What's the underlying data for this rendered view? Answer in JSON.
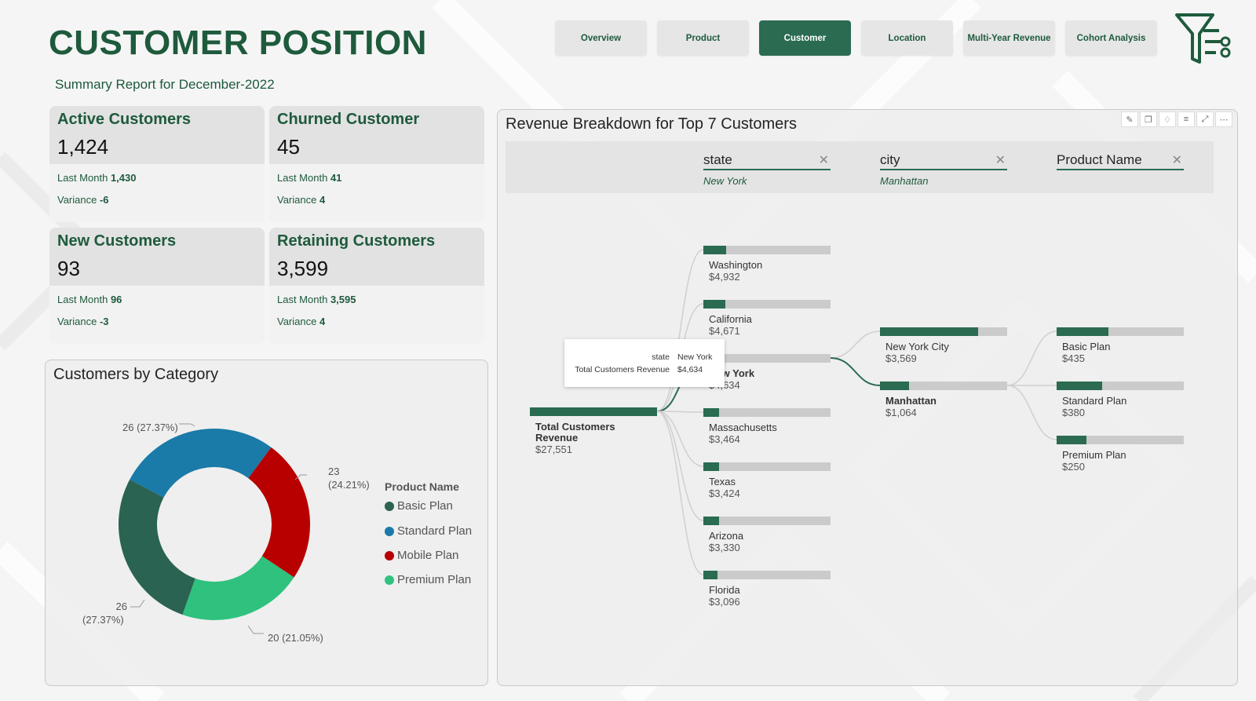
{
  "page": {
    "title": "CUSTOMER POSITION",
    "subtitle": "Summary Report for December-2022"
  },
  "nav": {
    "items": [
      {
        "label": "Overview"
      },
      {
        "label": "Product"
      },
      {
        "label": "Customer"
      },
      {
        "label": "Location"
      },
      {
        "label": "Multi-Year Revenue"
      },
      {
        "label": "Cohort Analysis"
      }
    ],
    "active": "Customer",
    "filter_icon": "filter-funnel-icon"
  },
  "kpis": [
    {
      "title": "Active Customers",
      "value": "1,424",
      "last_month_label": "Last Month",
      "last_month": "1,430",
      "variance_label": "Variance",
      "variance": "-6"
    },
    {
      "title": "Churned Customer",
      "value": "45",
      "last_month_label": "Last Month",
      "last_month": "41",
      "variance_label": "Variance",
      "variance": "4"
    },
    {
      "title": "New Customers",
      "value": "93",
      "last_month_label": "Last Month",
      "last_month": "96",
      "variance_label": "Variance",
      "variance": "-3"
    },
    {
      "title": "Retaining Customers",
      "value": "3,599",
      "last_month_label": "Last Month",
      "last_month": "3,595",
      "variance_label": "Variance",
      "variance": "4"
    }
  ],
  "category_panel": {
    "title": "Customers by Category",
    "legend_title": "Product Name",
    "labels": {
      "standard": "26 (27.37%)",
      "mobile_count": "23",
      "mobile_pct": "(24.21%)",
      "premium": "20 (21.05%)",
      "basic_count": "26",
      "basic_pct": "(27.37%)"
    }
  },
  "chart_data": {
    "type": "pie",
    "categories": [
      "Basic Plan",
      "Standard Plan",
      "Mobile Plan",
      "Premium Plan"
    ],
    "values": [
      26,
      26,
      23,
      20
    ],
    "percentages": [
      27.37,
      27.37,
      24.21,
      21.05
    ],
    "colors": [
      "#2a6352",
      "#1a7aa8",
      "#b80000",
      "#2ec27e"
    ],
    "title": "Customers by Category",
    "legend_title": "Product Name",
    "legend": "right"
  },
  "tree_panel": {
    "title": "Revenue Breakdown for Top 7 Customers",
    "toolbar_icons": [
      "pin-icon",
      "copy-icon",
      "bell-icon",
      "filter-icon",
      "focus-mode-icon",
      "more-options-icon"
    ],
    "columns": [
      {
        "name": "state",
        "selected": "New York"
      },
      {
        "name": "city",
        "selected": "Manhattan"
      },
      {
        "name": "Product Name",
        "selected": ""
      }
    ],
    "root": {
      "label": "Total Customers Revenue",
      "value": "$27,551",
      "fill": 1.0
    },
    "states": [
      {
        "label": "Washington",
        "value": "$4,932",
        "fill": 0.179
      },
      {
        "label": "California",
        "value": "$4,671",
        "fill": 0.17
      },
      {
        "label": "New York",
        "value": "$4,634",
        "fill": 0.168
      },
      {
        "label": "Massachusetts",
        "value": "$3,464",
        "fill": 0.126
      },
      {
        "label": "Texas",
        "value": "$3,424",
        "fill": 0.124
      },
      {
        "label": "Arizona",
        "value": "$3,330",
        "fill": 0.121
      },
      {
        "label": "Florida",
        "value": "$3,096",
        "fill": 0.112
      }
    ],
    "cities": [
      {
        "label": "New York City",
        "value": "$3,569",
        "fill": 0.77
      },
      {
        "label": "Manhattan",
        "value": "$1,064",
        "fill": 0.23
      }
    ],
    "products": [
      {
        "label": "Basic Plan",
        "value": "$435",
        "fill": 0.409
      },
      {
        "label": "Standard Plan",
        "value": "$380",
        "fill": 0.357
      },
      {
        "label": "Premium Plan",
        "value": "$250",
        "fill": 0.235
      }
    ],
    "tooltip": {
      "key1": "state",
      "val1": "New York",
      "key2": "Total Customers Revenue",
      "val2": "$4,634"
    }
  }
}
